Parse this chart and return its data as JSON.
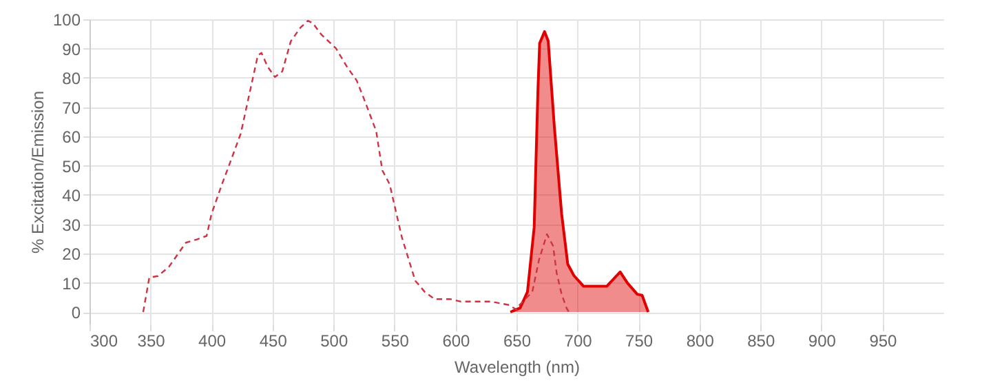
{
  "chart_data": {
    "type": "line",
    "xlabel": "Wavelength (nm)",
    "ylabel": "% Excitation/Emission",
    "xlim": [
      300,
      1000
    ],
    "xticks": [
      300,
      350,
      400,
      450,
      500,
      550,
      600,
      650,
      700,
      750,
      800,
      850,
      900,
      950
    ],
    "ylim": [
      -4,
      100
    ],
    "yticks": [
      0,
      10,
      20,
      30,
      40,
      50,
      60,
      70,
      80,
      90,
      100
    ],
    "grid": true,
    "series": [
      {
        "color": "#cc3344",
        "line_style": "dashed",
        "x": [
          344,
          349,
          356,
          365,
          379,
          388,
          396,
          400,
          408,
          415,
          424,
          431,
          438,
          441,
          446,
          452,
          458,
          465,
          473,
          479,
          483,
          490,
          502,
          511,
          519,
          525,
          535,
          540,
          546,
          556,
          567,
          575,
          583,
          596,
          604,
          629,
          644,
          650,
          652,
          663,
          668.5,
          675,
          680,
          683,
          687,
          691,
          693
        ],
        "values": [
          0,
          11.8,
          12.3,
          15.4,
          23.7,
          24.8,
          26,
          33.5,
          43,
          50.8,
          61,
          74.4,
          87.7,
          88.5,
          83.8,
          80.3,
          82.2,
          92.5,
          97.2,
          99.5,
          98.7,
          94.8,
          90.1,
          83.8,
          79.1,
          72.8,
          61.8,
          48.4,
          43.7,
          25.6,
          10.7,
          6.8,
          4.4,
          4.4,
          3.6,
          3.6,
          2.4,
          0.8,
          2.2,
          6.9,
          17.9,
          26.6,
          22.6,
          13.2,
          6.1,
          1.4,
          0
        ]
      },
      {
        "type": "area",
        "color": "#e00000",
        "line_style": "solid",
        "x": [
          645,
          653,
          659,
          664.5,
          667.6,
          669,
          673,
          676,
          681,
          687,
          692,
          697,
          705,
          724,
          735,
          741,
          749,
          753,
          758
        ],
        "values": [
          0,
          1.4,
          6.9,
          28.9,
          76,
          91.8,
          95.8,
          92.6,
          63.5,
          33.6,
          16.4,
          12.5,
          8.8,
          8.8,
          13.7,
          9.9,
          6.1,
          5.7,
          0
        ]
      }
    ]
  }
}
